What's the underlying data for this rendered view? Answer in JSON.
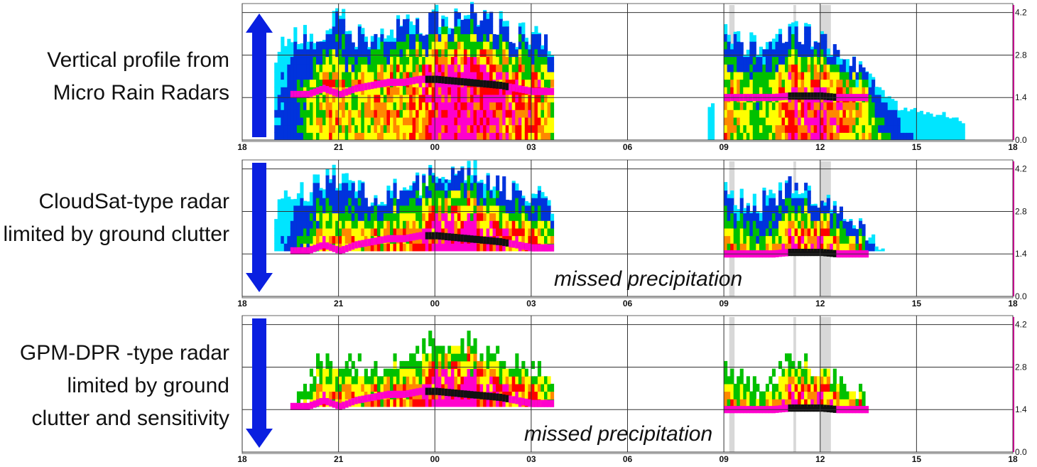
{
  "panels": [
    {
      "label_lines": [
        "Vertical profile from",
        "Micro Rain Radars"
      ],
      "arrow": "up-arrow",
      "annotation": "",
      "visible_min_km": 0.0,
      "sensitivity_limited": false
    },
    {
      "label_lines": [
        "CloudSat-type radar",
        "limited by ground clutter"
      ],
      "arrow": "down-arrow",
      "annotation": "missed precipitation",
      "visible_min_km": 1.4,
      "sensitivity_limited": false
    },
    {
      "label_lines": [
        "GPM-DPR -type radar",
        "limited by ground",
        "clutter and sensitivity"
      ],
      "arrow": "down-arrow",
      "annotation": "missed precipitation",
      "visible_min_km": 1.4,
      "sensitivity_limited": true
    }
  ],
  "colors": {
    "arrow": "#0a1fe0",
    "scale": [
      "#00e5ff",
      "#0033dd",
      "#00c000",
      "#ffff00",
      "#ff8800",
      "#ff0000",
      "#ff00cc",
      "#000000"
    ]
  },
  "chart_data": {
    "type": "heatmap",
    "x_ticks": [
      "18",
      "21",
      "00",
      "03",
      "06",
      "09",
      "12",
      "15",
      "18"
    ],
    "y_ticks": [
      "0.0",
      "1.4",
      "2.8",
      "4.2"
    ],
    "ylim": [
      0.0,
      4.2
    ],
    "grid": true,
    "shaded_times": [
      [
        "09:10",
        "09:20"
      ],
      [
        "11:10",
        "11:15"
      ],
      [
        "12:00",
        "12:20"
      ]
    ],
    "echo_segments": [
      {
        "points": [
          [
            "19:00",
            3.0,
            0.1,
            null
          ],
          [
            "19:30",
            3.4,
            0.2,
            null
          ],
          [
            "20:00",
            3.6,
            0.4,
            1.5
          ],
          [
            "20:30",
            3.8,
            0.6,
            1.7
          ],
          [
            "21:00",
            4.1,
            0.6,
            1.5
          ],
          [
            "21:30",
            3.6,
            0.5,
            1.7
          ],
          [
            "22:00",
            3.4,
            0.6,
            1.8
          ],
          [
            "22:30",
            3.5,
            0.6,
            1.9
          ],
          [
            "23:00",
            3.9,
            0.6,
            1.9
          ],
          [
            "23:30",
            3.8,
            0.7,
            2.0
          ],
          [
            "00:00",
            4.1,
            0.9,
            2.0
          ],
          [
            "00:30",
            4.2,
            0.95,
            1.95
          ],
          [
            "01:00",
            4.2,
            0.9,
            1.9
          ],
          [
            "01:30",
            4.0,
            0.85,
            1.85
          ],
          [
            "02:00",
            3.9,
            0.8,
            1.8
          ],
          [
            "02:30",
            3.5,
            0.7,
            1.7
          ],
          [
            "03:00",
            3.6,
            0.7,
            1.6
          ],
          [
            "03:40",
            3.0,
            0.5,
            1.6
          ]
        ]
      },
      {
        "points": [
          [
            "08:30",
            1.2,
            0.05,
            null
          ],
          [
            "08:40",
            1.1,
            0.05,
            null
          ]
        ]
      },
      {
        "points": [
          [
            "09:00",
            3.5,
            0.6,
            1.4
          ],
          [
            "09:30",
            3.3,
            0.5,
            1.4
          ],
          [
            "10:00",
            3.2,
            0.4,
            1.4
          ],
          [
            "10:30",
            3.4,
            0.5,
            1.4
          ],
          [
            "11:00",
            3.7,
            0.8,
            1.45
          ],
          [
            "11:30",
            3.6,
            0.8,
            1.45
          ],
          [
            "12:00",
            3.3,
            0.85,
            1.45
          ],
          [
            "12:30",
            3.0,
            0.75,
            1.4
          ],
          [
            "13:00",
            2.6,
            0.6,
            1.4
          ],
          [
            "13:30",
            2.0,
            0.5,
            null
          ],
          [
            "14:00",
            1.5,
            0.3,
            null
          ],
          [
            "14:30",
            1.0,
            0.1,
            null
          ],
          [
            "15:00",
            1.0,
            0.05,
            null
          ],
          [
            "16:00",
            0.8,
            0.05,
            null
          ],
          [
            "16:30",
            0.6,
            0.05,
            null
          ]
        ]
      }
    ]
  }
}
